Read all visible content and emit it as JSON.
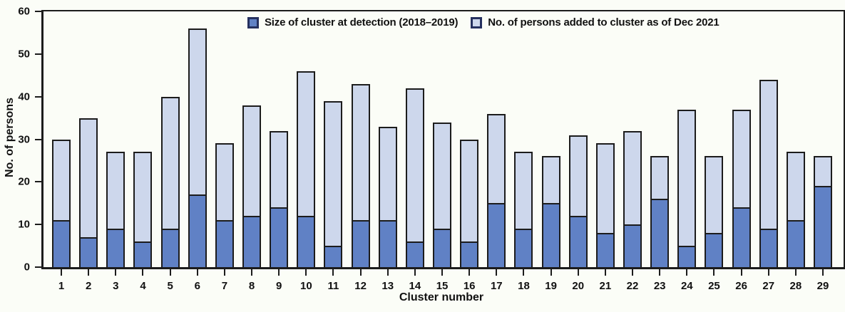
{
  "figure": {
    "background": "#fbfdf7"
  },
  "colors": {
    "axis": "#1c1c1c",
    "bar_outline": "#1c1c1c",
    "legend_swatch_border": "#25305f",
    "series_detection": "#6081c5",
    "series_added": "#cdd7ec",
    "text": "#111111"
  },
  "chart_data": {
    "type": "bar",
    "stacked": true,
    "title": "",
    "xlabel": "Cluster number",
    "ylabel": "No. of persons",
    "ylim": [
      0,
      60
    ],
    "yticks": [
      0,
      10,
      20,
      30,
      40,
      50,
      60
    ],
    "grid": false,
    "legend_position": "top-inside",
    "categories": [
      "1",
      "2",
      "3",
      "4",
      "5",
      "6",
      "7",
      "8",
      "9",
      "10",
      "11",
      "12",
      "13",
      "14",
      "15",
      "16",
      "17",
      "18",
      "19",
      "20",
      "21",
      "22",
      "23",
      "24",
      "25",
      "26",
      "27",
      "28",
      "29"
    ],
    "series": [
      {
        "name": "Size of cluster at detection (2018–2019)",
        "color": "#6081c5",
        "values": [
          11,
          7,
          9,
          6,
          9,
          17,
          11,
          12,
          14,
          12,
          5,
          11,
          11,
          6,
          9,
          6,
          15,
          9,
          15,
          12,
          8,
          10,
          16,
          5,
          8,
          14,
          9,
          11,
          19
        ]
      },
      {
        "name": "No. of persons added to cluster as of Dec 2021",
        "color": "#cdd7ec",
        "values": [
          19,
          28,
          18,
          21,
          31,
          39,
          18,
          26,
          18,
          34,
          34,
          32,
          22,
          36,
          25,
          24,
          21,
          18,
          11,
          19,
          21,
          22,
          10,
          32,
          18,
          23,
          35,
          16,
          7
        ]
      }
    ],
    "totals": [
      30,
      35,
      27,
      27,
      40,
      56,
      29,
      38,
      32,
      46,
      39,
      43,
      33,
      42,
      34,
      30,
      36,
      27,
      26,
      31,
      29,
      32,
      26,
      37,
      26,
      37,
      44,
      27,
      26
    ]
  }
}
